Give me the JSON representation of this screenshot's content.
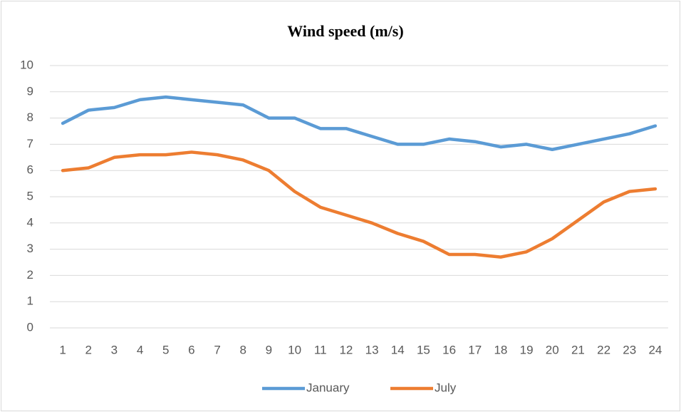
{
  "chart_data": {
    "type": "line",
    "title": "Wind speed (m/s)",
    "categories": [
      "1",
      "2",
      "3",
      "4",
      "5",
      "6",
      "7",
      "8",
      "9",
      "10",
      "11",
      "12",
      "13",
      "14",
      "15",
      "16",
      "17",
      "18",
      "19",
      "20",
      "21",
      "22",
      "23",
      "24"
    ],
    "series": [
      {
        "name": "January",
        "color": "#5b9bd5",
        "values": [
          7.8,
          8.3,
          8.4,
          8.7,
          8.8,
          8.7,
          8.6,
          8.5,
          8.0,
          8.0,
          7.6,
          7.6,
          7.3,
          7.0,
          7.0,
          7.2,
          7.1,
          6.9,
          7.0,
          6.8,
          7.0,
          7.2,
          7.4,
          7.7
        ]
      },
      {
        "name": "July",
        "color": "#ed7d31",
        "values": [
          6.0,
          6.1,
          6.5,
          6.6,
          6.6,
          6.7,
          6.6,
          6.4,
          6.0,
          5.2,
          4.6,
          4.3,
          4.0,
          3.6,
          3.3,
          2.8,
          2.8,
          2.7,
          2.9,
          3.4,
          4.1,
          4.8,
          5.2,
          5.3
        ]
      }
    ],
    "ylim": [
      0,
      10
    ],
    "yticks": [
      0,
      1,
      2,
      3,
      4,
      5,
      6,
      7,
      8,
      9,
      10
    ],
    "grid": true,
    "legend": "bottom"
  }
}
